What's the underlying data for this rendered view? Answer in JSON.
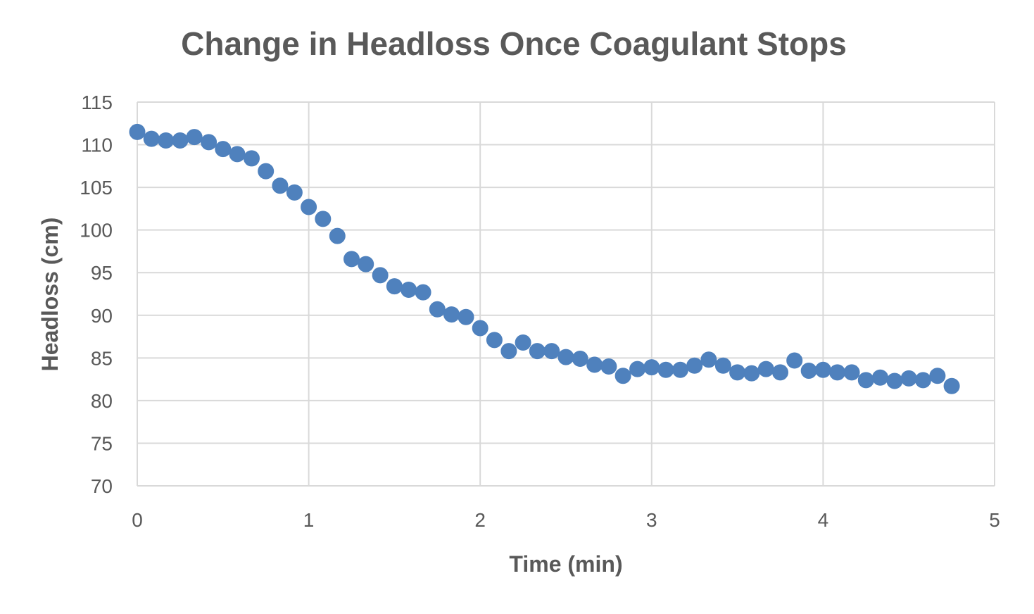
{
  "chart_data": {
    "type": "scatter",
    "title": "Change in Headloss Once Coagulant Stops",
    "xlabel": "Time (min)",
    "ylabel": "Headloss (cm)",
    "xlim": [
      0,
      5
    ],
    "ylim": [
      70,
      115
    ],
    "xticks": [
      "0",
      "1",
      "2",
      "3",
      "4",
      "5"
    ],
    "yticks": [
      "70",
      "75",
      "80",
      "85",
      "90",
      "95",
      "100",
      "105",
      "110",
      "115"
    ],
    "grid": true,
    "legend": "none",
    "marker_color": "#4f81bd",
    "series": [
      {
        "x": [
          0,
          0.083,
          0.167,
          0.25,
          0.333,
          0.417,
          0.5,
          0.583,
          0.667,
          0.75,
          0.833,
          0.917,
          1.0,
          1.083,
          1.167,
          1.25,
          1.333,
          1.417,
          1.5,
          1.583,
          1.667,
          1.75,
          1.833,
          1.917,
          2.0,
          2.083,
          2.167,
          2.25,
          2.333,
          2.417,
          2.5,
          2.583,
          2.667,
          2.75,
          2.833,
          2.917,
          3.0,
          3.083,
          3.167,
          3.25,
          3.333,
          3.417,
          3.5,
          3.583,
          3.667,
          3.75,
          3.833,
          3.917,
          4.0,
          4.083,
          4.167,
          4.25,
          4.333,
          4.417,
          4.5,
          4.583,
          4.667,
          4.75
        ],
        "y": [
          111.5,
          110.7,
          110.5,
          110.5,
          110.9,
          110.3,
          109.5,
          108.9,
          108.4,
          106.9,
          105.2,
          104.4,
          102.7,
          101.3,
          99.3,
          96.6,
          96.0,
          94.7,
          93.4,
          93.0,
          92.7,
          90.7,
          90.1,
          89.8,
          88.5,
          87.1,
          85.8,
          86.8,
          85.8,
          85.8,
          85.1,
          84.9,
          84.2,
          84.0,
          82.9,
          83.7,
          83.9,
          83.6,
          83.6,
          84.1,
          84.8,
          84.1,
          83.3,
          83.2,
          83.7,
          83.3,
          84.7,
          83.5,
          83.6,
          83.3,
          83.3,
          82.4,
          82.7,
          82.3,
          82.6,
          82.4,
          82.9,
          81.7
        ]
      }
    ]
  }
}
